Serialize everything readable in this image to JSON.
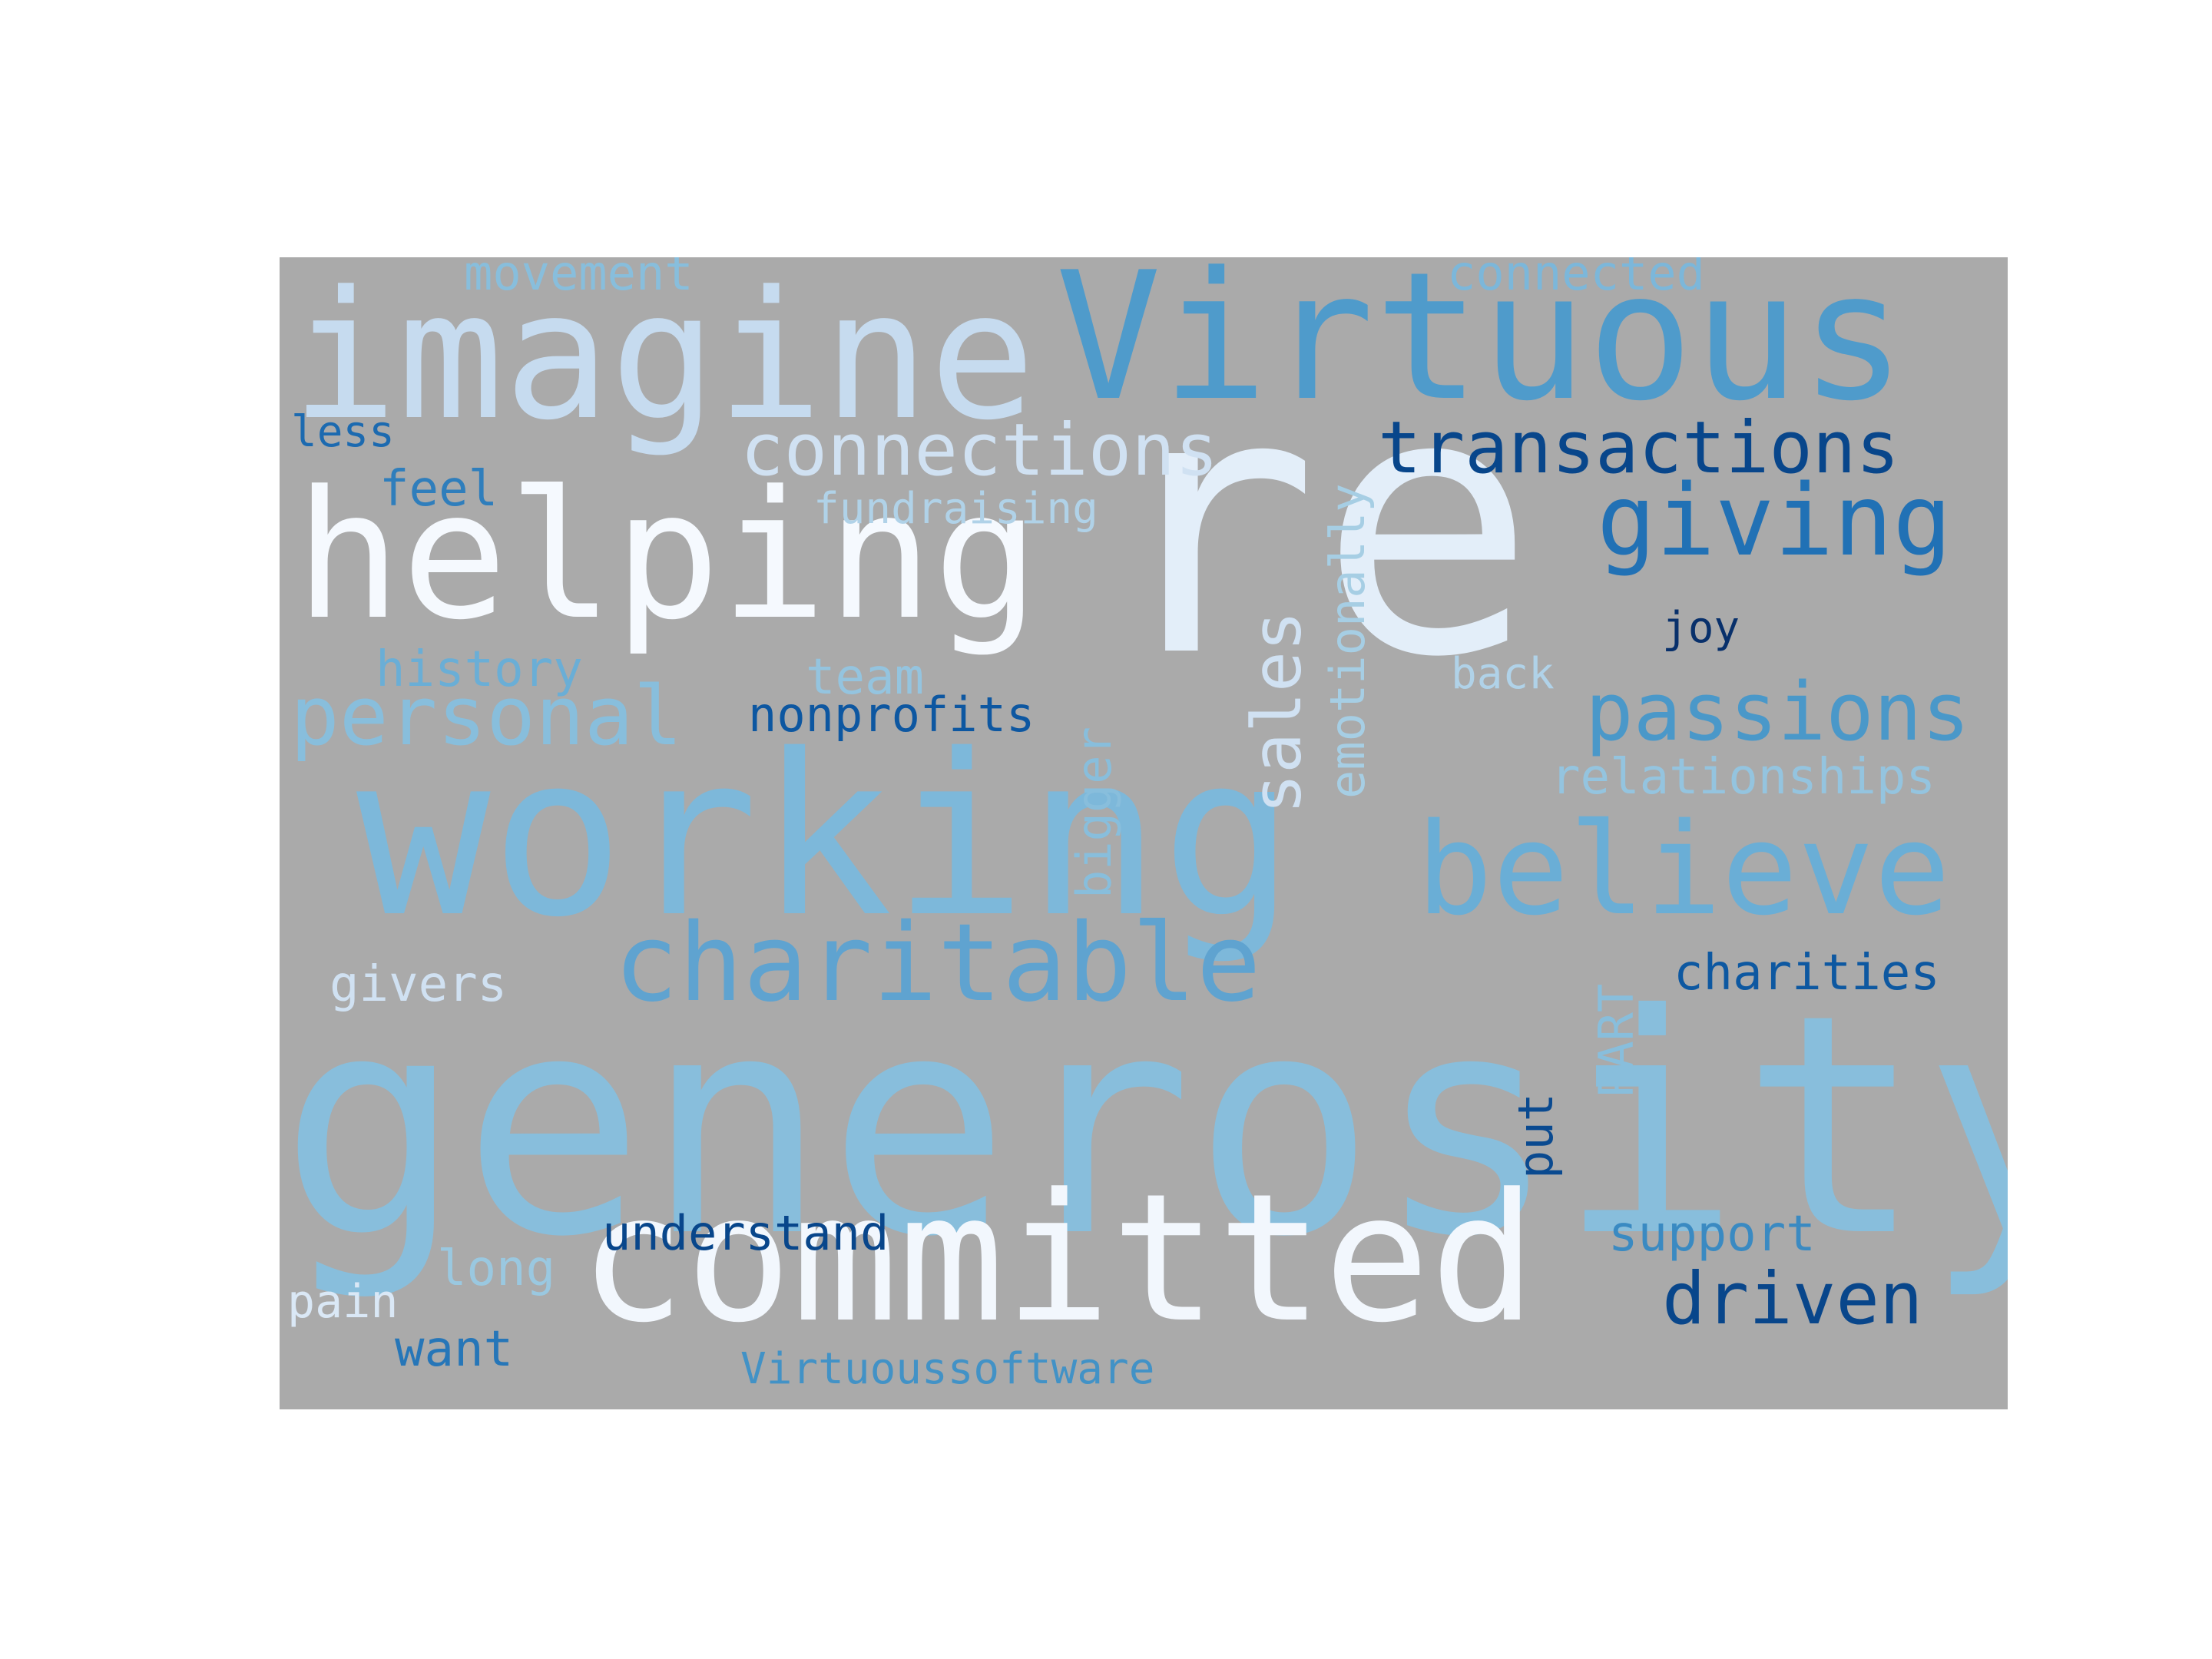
{
  "background": "#aaaaaa",
  "words": [
    {
      "text": "re",
      "color": "#e3eef9"
    },
    {
      "text": "generosity",
      "color": "#88bedc"
    },
    {
      "text": "working",
      "color": "#7db8da"
    },
    {
      "text": "imagine",
      "color": "#c6dbef"
    },
    {
      "text": "Virtuous",
      "color": "#4f9bcb"
    },
    {
      "text": "helping",
      "color": "#f5f9fe"
    },
    {
      "text": "committed",
      "color": "#f2f7fd"
    },
    {
      "text": "believe",
      "color": "#6aaed6"
    },
    {
      "text": "charitable",
      "color": "#5fa3d0"
    },
    {
      "text": "giving",
      "color": "#2171b5"
    },
    {
      "text": "personal",
      "color": "#88bedc"
    },
    {
      "text": "passions",
      "color": "#4a98c9"
    },
    {
      "text": "connections",
      "color": "#d0e1f2"
    },
    {
      "text": "transactions",
      "color": "#08468b"
    },
    {
      "text": "driven",
      "color": "#08468b"
    },
    {
      "text": "sales",
      "color": "#d0e1f2"
    },
    {
      "text": "emotionally",
      "color": "#a6cee4"
    },
    {
      "text": "bigger",
      "color": "#88bedc"
    },
    {
      "text": "charities",
      "color": "#0d58a1"
    },
    {
      "text": "support",
      "color": "#3a8ac2"
    },
    {
      "text": "relationships",
      "color": "#94c4df"
    },
    {
      "text": "team",
      "color": "#94c4df"
    },
    {
      "text": "nonprofits",
      "color": "#0d57a1"
    },
    {
      "text": "history",
      "color": "#6aaed6"
    },
    {
      "text": "feel",
      "color": "#2f7ebc"
    },
    {
      "text": "movement",
      "color": "#88bedc"
    },
    {
      "text": "connected",
      "color": "#7cb7da"
    },
    {
      "text": "fundraising",
      "color": "#b0d2e8"
    },
    {
      "text": "PART",
      "color": "#88bedc"
    },
    {
      "text": "put",
      "color": "#0a4a90"
    },
    {
      "text": "givers",
      "color": "#d0e1f2"
    },
    {
      "text": "understand",
      "color": "#08468b"
    },
    {
      "text": "long",
      "color": "#9ac8e0"
    },
    {
      "text": "pain",
      "color": "#dae8f6"
    },
    {
      "text": "want",
      "color": "#2676b8"
    },
    {
      "text": "Virtuoussoftware",
      "color": "#4292c6"
    },
    {
      "text": "back",
      "color": "#b0d2e8"
    },
    {
      "text": "joy",
      "color": "#08306b"
    },
    {
      "text": "less",
      "color": "#1c6ab0"
    }
  ]
}
